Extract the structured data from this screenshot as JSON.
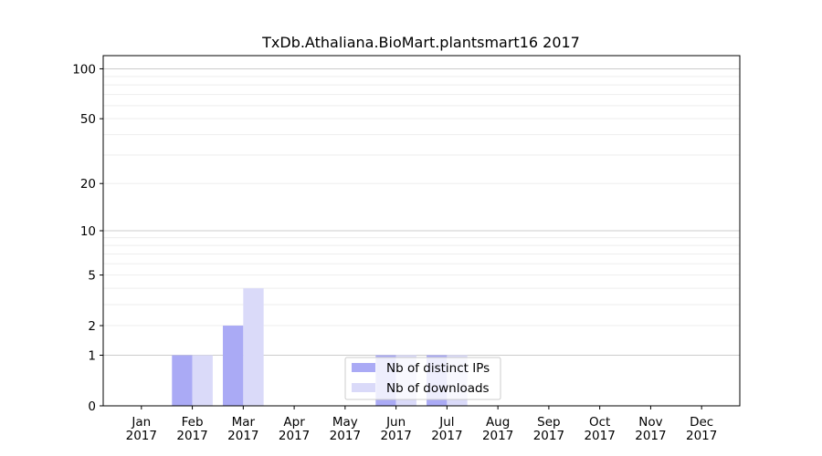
{
  "chart_data": {
    "type": "bar",
    "title": "TxDb.Athaliana.BioMart.plantsmart16 2017",
    "categories": [
      [
        "Jan",
        "2017"
      ],
      [
        "Feb",
        "2017"
      ],
      [
        "Mar",
        "2017"
      ],
      [
        "Apr",
        "2017"
      ],
      [
        "May",
        "2017"
      ],
      [
        "Jun",
        "2017"
      ],
      [
        "Jul",
        "2017"
      ],
      [
        "Aug",
        "2017"
      ],
      [
        "Sep",
        "2017"
      ],
      [
        "Oct",
        "2017"
      ],
      [
        "Nov",
        "2017"
      ],
      [
        "Dec",
        "2017"
      ]
    ],
    "series": [
      {
        "name": "Nb of distinct IPs",
        "color": "#aaaaf5",
        "values": [
          0,
          1,
          2,
          0,
          0,
          1,
          1,
          0,
          0,
          0,
          0,
          0
        ]
      },
      {
        "name": "Nb of downloads",
        "color": "#dadaf9",
        "values": [
          0,
          1,
          4,
          0,
          0,
          1,
          1,
          0,
          0,
          0,
          0,
          0
        ]
      }
    ],
    "yscale": "log1p",
    "yticks": [
      0,
      1,
      2,
      5,
      10,
      20,
      50,
      100
    ],
    "ylim": [
      0,
      120
    ],
    "grid": true,
    "legend_position": "bottom-center",
    "xlabel": "",
    "ylabel": ""
  }
}
